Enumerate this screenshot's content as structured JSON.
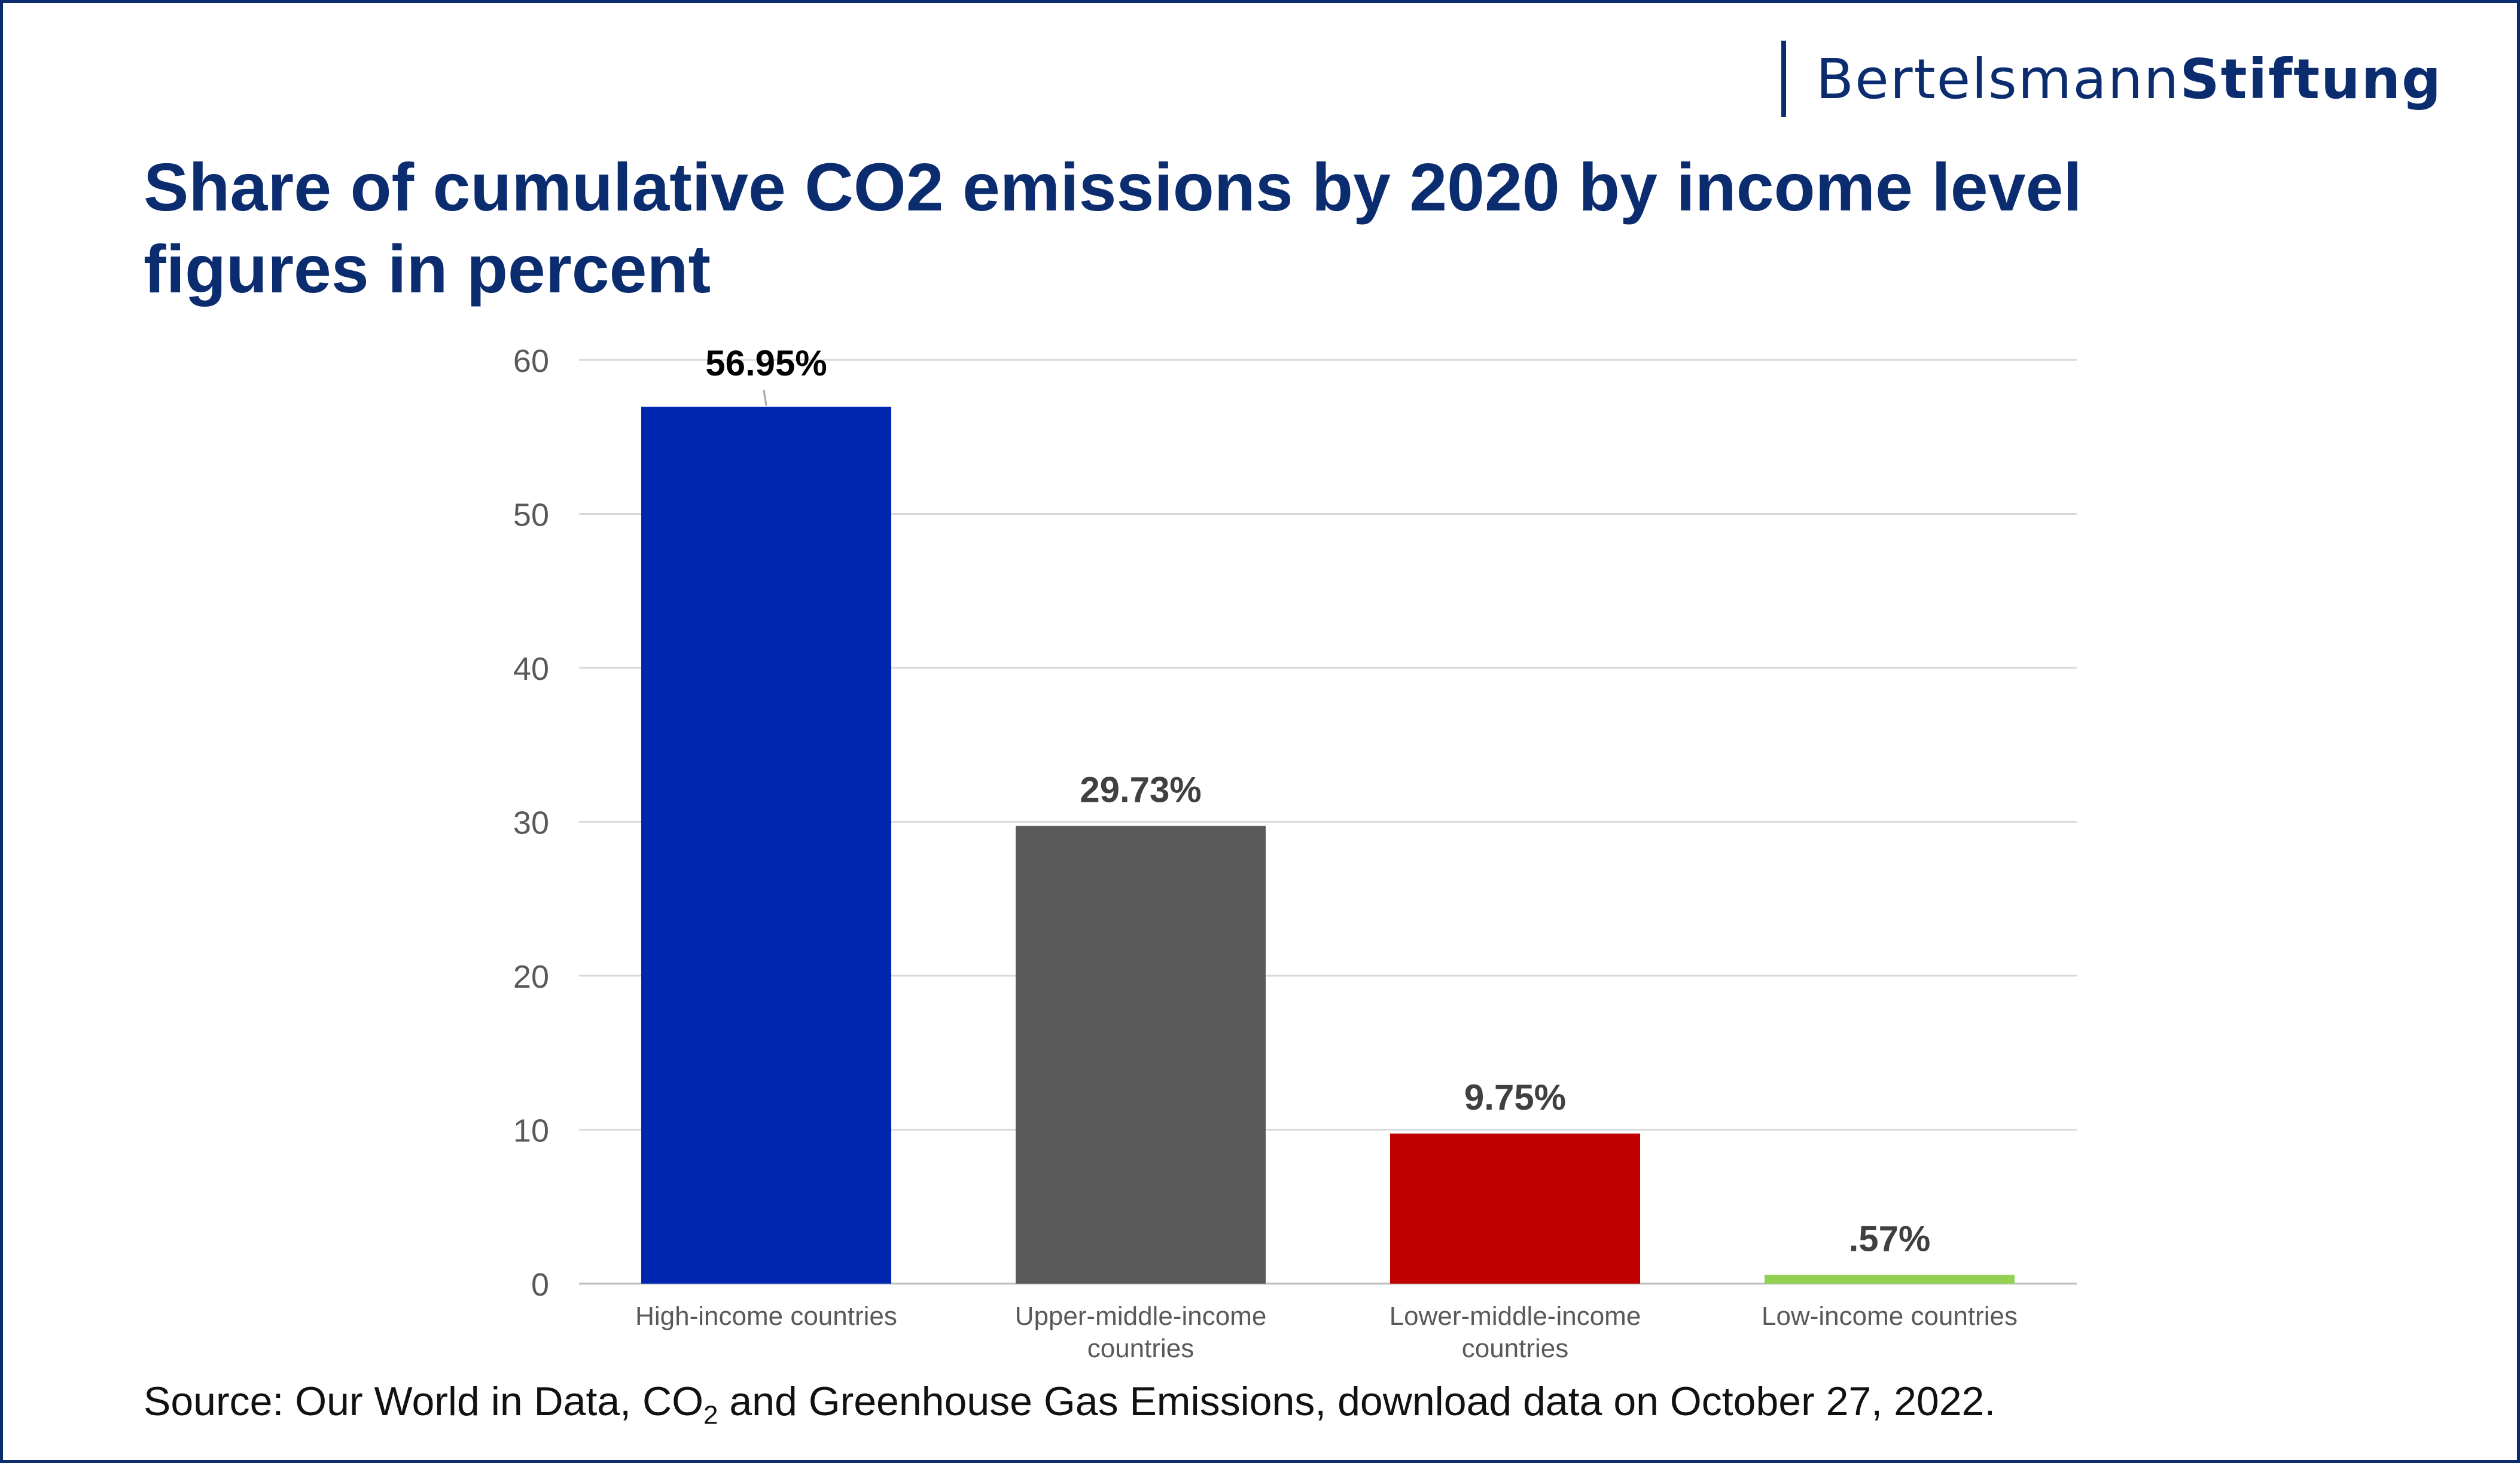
{
  "brand": {
    "name_regular": "Bertelsmann",
    "name_bold": "Stiftung"
  },
  "title": {
    "line1": "Share of cumulative CO2 emissions by 2020 by income level",
    "line2": "figures in percent"
  },
  "source": {
    "prefix": "Source: Our World in Data, CO",
    "subscript": "2",
    "suffix": " and Greenhouse Gas Emissions, download data on October 27, 2022."
  },
  "colors": {
    "title": "#0b2c6f",
    "grid": "#d9d9d9",
    "axis_text": "#595959",
    "data_label_primary": "#000000",
    "data_label_secondary": "#404040"
  },
  "chart_data": {
    "type": "bar",
    "categories": [
      [
        "High-income countries"
      ],
      [
        "Upper-middle-income",
        "countries"
      ],
      [
        "Lower-middle-income",
        "countries"
      ],
      [
        "Low-income countries"
      ]
    ],
    "values": [
      56.95,
      29.73,
      9.75,
      0.57
    ],
    "data_labels": [
      "56.95%",
      "29.73%",
      "9.75%",
      ".57%"
    ],
    "bar_colors": [
      "#0026b0",
      "#595959",
      "#c00000",
      "#92d050"
    ],
    "ylim": [
      0,
      60
    ],
    "yticks": [
      0,
      10,
      20,
      30,
      40,
      50,
      60
    ],
    "grid": true,
    "legend": "none"
  }
}
